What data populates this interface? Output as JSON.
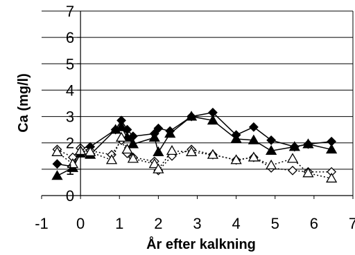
{
  "chart_data": {
    "type": "line",
    "title": "",
    "xlabel": "År efter kalkning",
    "ylabel": "Ca (mg/l)",
    "xlim": [
      -1,
      7
    ],
    "ylim": [
      0,
      7
    ],
    "xticks": [
      "-1",
      "0",
      "1",
      "2",
      "3",
      "4",
      "5",
      "6",
      "7"
    ],
    "yticks": [
      "0",
      "1",
      "2",
      "3",
      "4",
      "5",
      "6",
      "7"
    ],
    "grid": "horizontal",
    "legend": "none",
    "series": [
      {
        "marker": "filled-diamond",
        "line": "solid",
        "color": "#000000",
        "x": [
          -0.6,
          -0.2,
          0.0,
          0.25,
          0.9,
          1.05,
          1.2,
          1.35,
          1.9,
          2.0,
          2.3,
          2.85,
          3.4,
          4.0,
          4.45,
          4.9,
          5.5,
          5.85,
          6.45
        ],
        "y": [
          1.2,
          1.1,
          1.8,
          1.85,
          2.5,
          2.85,
          2.5,
          2.25,
          2.35,
          2.55,
          2.45,
          3.0,
          3.15,
          2.3,
          2.6,
          2.1,
          1.85,
          1.95,
          2.05
        ]
      },
      {
        "marker": "filled-triangle",
        "line": "solid",
        "color": "#000000",
        "x": [
          -0.6,
          -0.2,
          0.0,
          0.25,
          0.9,
          1.05,
          1.2,
          1.35,
          1.9,
          2.0,
          2.3,
          2.85,
          3.4,
          4.0,
          4.45,
          4.9,
          5.5,
          5.85,
          6.45
        ],
        "y": [
          0.75,
          1.05,
          1.6,
          1.55,
          2.5,
          2.6,
          2.2,
          1.95,
          2.2,
          1.65,
          2.35,
          3.0,
          2.85,
          2.15,
          2.1,
          1.7,
          1.85,
          1.95,
          1.75
        ]
      },
      {
        "marker": "open-diamond",
        "line": "dotted",
        "color": "#000000",
        "x": [
          -0.6,
          -0.2,
          0.0,
          0.25,
          0.8,
          1.05,
          1.2,
          1.35,
          1.9,
          2.0,
          2.35,
          2.85,
          3.4,
          4.0,
          4.45,
          4.9,
          5.45,
          5.85,
          6.45
        ],
        "y": [
          1.75,
          1.45,
          1.8,
          1.7,
          1.55,
          2.1,
          1.6,
          1.45,
          1.3,
          0.95,
          1.5,
          1.75,
          1.55,
          1.35,
          1.45,
          1.05,
          0.95,
          0.9,
          0.9
        ]
      },
      {
        "marker": "open-triangle",
        "line": "dotted",
        "color": "#000000",
        "x": [
          -0.6,
          -0.2,
          0.0,
          0.25,
          0.8,
          1.05,
          1.2,
          1.35,
          1.9,
          2.0,
          2.35,
          2.85,
          3.4,
          4.0,
          4.45,
          4.9,
          5.45,
          5.85,
          6.45
        ],
        "y": [
          1.65,
          1.2,
          1.7,
          1.65,
          1.35,
          2.2,
          1.75,
          1.4,
          1.2,
          1.0,
          1.7,
          1.65,
          1.55,
          1.35,
          1.45,
          1.15,
          1.4,
          0.85,
          0.65
        ]
      }
    ]
  }
}
